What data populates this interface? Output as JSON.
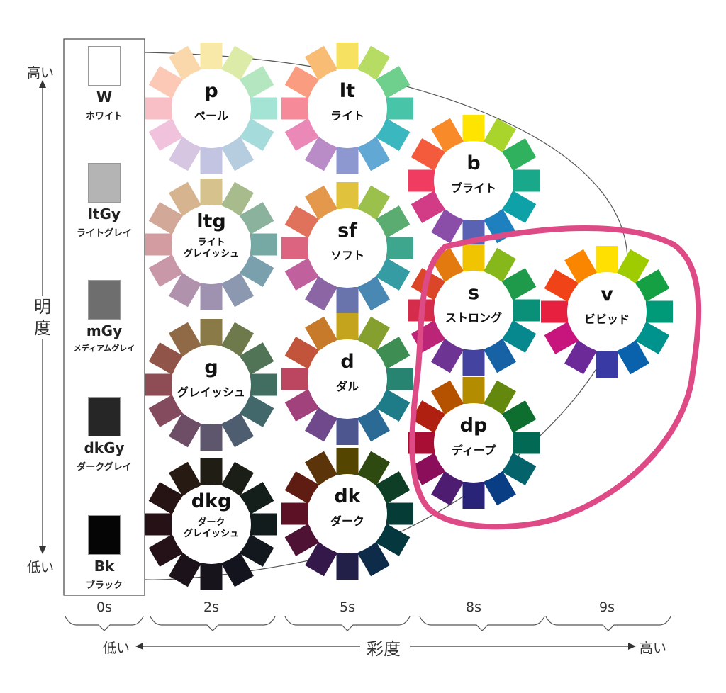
{
  "axes": {
    "lightness": {
      "title": "明度",
      "high": "高い",
      "low": "低い"
    },
    "saturation": {
      "title": "彩度",
      "low": "低い",
      "high": "高い"
    }
  },
  "grays": [
    {
      "code": "W",
      "name": "ホワイト",
      "color": "#ffffff"
    },
    {
      "code": "ltGy",
      "name": "ライトグレイ",
      "color": "#b4b4b4"
    },
    {
      "code": "mGy",
      "name": "メディアムグレイ",
      "color": "#6e6e6e"
    },
    {
      "code": "dkGy",
      "name": "ダークグレイ",
      "color": "#262626"
    },
    {
      "code": "Bk",
      "name": "ブラック",
      "color": "#050505"
    }
  ],
  "chroma_columns": [
    "0s",
    "2s",
    "5s",
    "8s",
    "9s"
  ],
  "tones": [
    {
      "code": "p",
      "name": "ペール",
      "colors": [
        "#f9e9a8",
        "#dceca8",
        "#b4e7c0",
        "#a4e4d4",
        "#a6dbdc",
        "#b6cde0",
        "#c2c4e2",
        "#d7c6e2",
        "#f1c2dc",
        "#f8bfc6",
        "#fbc9b6",
        "#fbd8ac"
      ]
    },
    {
      "code": "lt",
      "name": "ライト",
      "colors": [
        "#f6e260",
        "#b7dc64",
        "#6fcf8c",
        "#48c4a8",
        "#3bb7c0",
        "#62a8d4",
        "#8e98d0",
        "#b98cc8",
        "#ea88b8",
        "#f78a98",
        "#f99c80",
        "#f9bc74"
      ]
    },
    {
      "code": "b",
      "name": "ブライト",
      "colors": [
        "#ffe400",
        "#a8d42c",
        "#2fb15e",
        "#1aa88a",
        "#0ea2a8",
        "#1f80c0",
        "#5a62b4",
        "#8a4ea8",
        "#d23c86",
        "#ef3c60",
        "#f45a3c",
        "#f98a2a"
      ]
    },
    {
      "code": "ltg",
      "name": "ライト\nグレイッシュ",
      "colors": [
        "#d5c28c",
        "#a7bb8c",
        "#8bb29c",
        "#76a8a4",
        "#7aa0ae",
        "#8c98b0",
        "#9e92b0",
        "#b092ac",
        "#c898a8",
        "#d29ca0",
        "#d2a898",
        "#d6b490"
      ]
    },
    {
      "code": "sf",
      "name": "ソフト",
      "colors": [
        "#e1c23c",
        "#9cc04c",
        "#5aac70",
        "#3ea68c",
        "#369ca4",
        "#4a88b4",
        "#6a74ac",
        "#8c66a4",
        "#c0609c",
        "#dc6480",
        "#e0725c",
        "#e4984c"
      ]
    },
    {
      "code": "g",
      "name": "グレイッシュ",
      "colors": [
        "#8a7a48",
        "#6e7a4c",
        "#527456",
        "#426e62",
        "#42686c",
        "#4e5e70",
        "#5e566c",
        "#6e4e66",
        "#844a5e",
        "#8e4c54",
        "#905448",
        "#906a46"
      ]
    },
    {
      "code": "d",
      "name": "ダル",
      "colors": [
        "#c4a41c",
        "#86a030",
        "#3e8e54",
        "#268470",
        "#1e7c88",
        "#2c6a96",
        "#4e5690",
        "#70488c",
        "#a2427c",
        "#bc4660",
        "#c2543c",
        "#c67a2a"
      ]
    },
    {
      "code": "s",
      "name": "ストロング",
      "colors": [
        "#f0c400",
        "#86b81c",
        "#1e9a4a",
        "#0a9078",
        "#06888e",
        "#1662a4",
        "#4444a0",
        "#6e3494",
        "#bc2478",
        "#d62c4c",
        "#dc4628",
        "#e27a10"
      ]
    },
    {
      "code": "v",
      "name": "ビビッド",
      "colors": [
        "#ffe000",
        "#9ecc00",
        "#14a043",
        "#009a78",
        "#00928c",
        "#0a62ac",
        "#3a3aa4",
        "#6c2a98",
        "#c8157e",
        "#e6203e",
        "#f04318",
        "#fa8600"
      ]
    },
    {
      "code": "dkg",
      "name": "ダーク\nグレイッシュ",
      "colors": [
        "#201e14",
        "#1a1e16",
        "#141e1a",
        "#121c1c",
        "#12181e",
        "#14141e",
        "#18141c",
        "#1c121a",
        "#241218",
        "#261216",
        "#261414",
        "#261a12"
      ]
    },
    {
      "code": "dk",
      "name": "ダーク",
      "colors": [
        "#544600",
        "#2e4a10",
        "#0e3e26",
        "#063c36",
        "#05383e",
        "#0e2c4a",
        "#222048",
        "#34184a",
        "#4e1234",
        "#5c1224",
        "#5e1c12",
        "#5c340a"
      ]
    },
    {
      "code": "dp",
      "name": "ディープ",
      "colors": [
        "#b48c00",
        "#64880e",
        "#0e6e30",
        "#026a54",
        "#03626a",
        "#0a3e84",
        "#2a2478",
        "#4e1c70",
        "#8a0e5a",
        "#a80e34",
        "#b02010",
        "#b45200"
      ]
    }
  ]
}
